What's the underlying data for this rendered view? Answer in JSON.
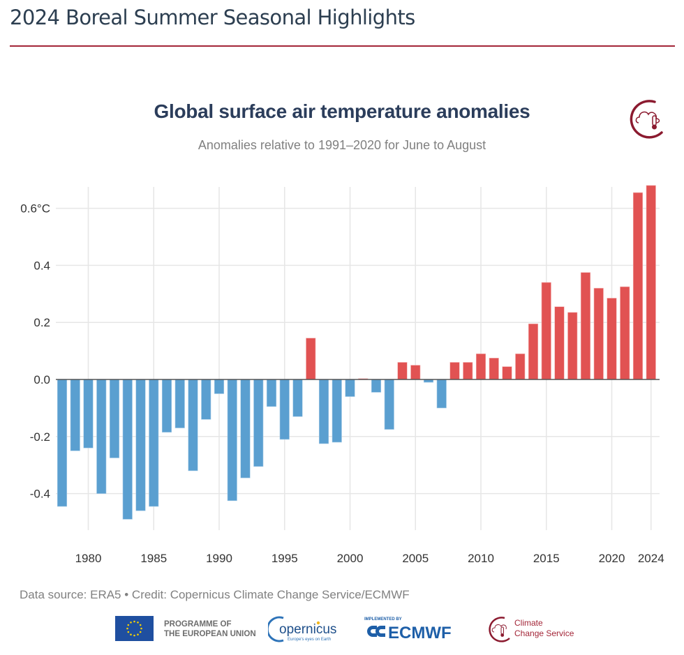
{
  "page": {
    "title": "2024 Boreal Summer Seasonal Highlights"
  },
  "colors": {
    "rule": "#a32638",
    "positive_bar": "#e15252",
    "negative_bar": "#5a9fd0",
    "zero_line": "#555555",
    "grid": "#e6e6e6"
  },
  "chart_data": {
    "type": "bar",
    "title": "Global surface air temperature anomalies",
    "subtitle": "Anomalies relative to 1991–2020 for June to August",
    "xlabel": "",
    "ylabel": "",
    "unit": "°C",
    "ylim": [
      -0.5,
      0.7
    ],
    "yticks": [
      -0.4,
      -0.2,
      0.0,
      0.2,
      0.4,
      0.6
    ],
    "ytick_labels": [
      "-0.4",
      "-0.2",
      "0.0",
      "0.2",
      "0.4",
      "0.6°C"
    ],
    "xticks": [
      1980,
      1985,
      1990,
      1995,
      2000,
      2005,
      2010,
      2015,
      2020,
      2024
    ],
    "xtick_labels": [
      "1980",
      "1985",
      "1990",
      "1995",
      "2000",
      "2005",
      "2010",
      "2015",
      "2020",
      "2024"
    ],
    "grid": true,
    "legend": "none",
    "categories": [
      1979,
      1980,
      1981,
      1982,
      1983,
      1984,
      1985,
      1986,
      1987,
      1988,
      1989,
      1990,
      1991,
      1992,
      1993,
      1994,
      1995,
      1996,
      1997,
      1998,
      1999,
      2000,
      2001,
      2002,
      2003,
      2004,
      2005,
      2006,
      2007,
      2008,
      2009,
      2010,
      2011,
      2012,
      2013,
      2014,
      2015,
      2016,
      2017,
      2018,
      2019,
      2020,
      2021,
      2022,
      2023,
      2024
    ],
    "values": [
      -0.445,
      -0.25,
      -0.24,
      -0.4,
      -0.275,
      -0.49,
      -0.46,
      -0.445,
      -0.185,
      -0.17,
      -0.32,
      -0.14,
      -0.05,
      -0.425,
      -0.345,
      -0.305,
      -0.095,
      -0.21,
      -0.13,
      0.145,
      -0.225,
      -0.22,
      -0.06,
      0.003,
      -0.045,
      -0.175,
      0.06,
      0.05,
      -0.01,
      -0.1,
      0.06,
      0.06,
      0.09,
      0.075,
      0.045,
      0.09,
      0.195,
      0.34,
      0.255,
      0.235,
      0.375,
      0.32,
      0.285,
      0.325,
      0.655,
      0.68
    ]
  },
  "footer": {
    "source": "Data source: ERA5 • Credit: Copernicus Climate Change Service/ECMWF",
    "eu_line1": "PROGRAMME OF",
    "eu_line2": "THE EUROPEAN UNION",
    "copernicus_name": "opernicus",
    "copernicus_tagline": "Europe's eyes on Earth",
    "ecmwf_implemented": "IMPLEMENTED BY",
    "ecmwf_name": "ECMWF",
    "c3s_line1": "Climate",
    "c3s_line2": "Change Service"
  }
}
